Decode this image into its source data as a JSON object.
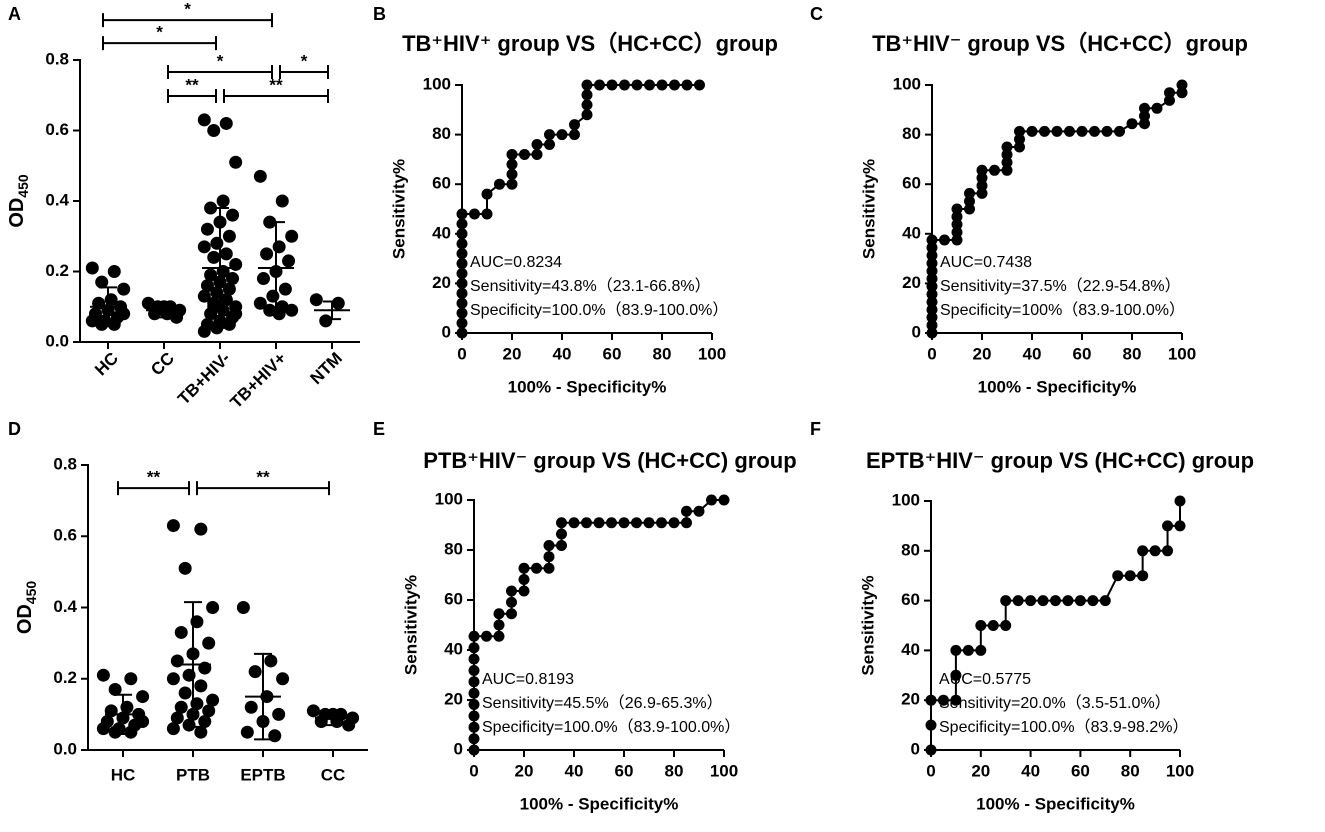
{
  "chart_data": [
    {
      "type": "dotplot",
      "panel": "A",
      "y_label": "OD",
      "y_label_sub": "450",
      "categories": [
        "HC",
        "CC",
        "TB+HIV-",
        "TB+HIV+",
        "NTM"
      ],
      "xtick_rotation": -45,
      "values": [
        [
          0.21,
          0.2,
          0.17,
          0.15,
          0.12,
          0.11,
          0.1,
          0.09,
          0.08,
          0.07,
          0.06,
          0.06,
          0.05,
          0.05,
          0.08
        ],
        [
          0.11,
          0.1,
          0.1,
          0.09,
          0.08,
          0.08,
          0.07,
          0.1
        ],
        [
          0.63,
          0.62,
          0.6,
          0.51,
          0.4,
          0.38,
          0.36,
          0.34,
          0.32,
          0.3,
          0.28,
          0.27,
          0.25,
          0.24,
          0.22,
          0.2,
          0.19,
          0.18,
          0.17,
          0.16,
          0.15,
          0.14,
          0.13,
          0.12,
          0.11,
          0.1,
          0.09,
          0.08,
          0.07,
          0.06,
          0.05,
          0.05,
          0.04,
          0.03,
          0.12,
          0.1,
          0.08
        ],
        [
          0.47,
          0.4,
          0.34,
          0.3,
          0.27,
          0.25,
          0.23,
          0.2,
          0.18,
          0.15,
          0.13,
          0.11,
          0.1,
          0.09,
          0.09,
          0.08
        ],
        [
          0.12,
          0.11,
          0.06
        ]
      ],
      "means": [
        0.1,
        0.09,
        0.21,
        0.21,
        0.09
      ],
      "sds": [
        0.055,
        0.02,
        0.17,
        0.13,
        0.025
      ],
      "ylim": [
        0,
        0.8
      ],
      "yticks": [
        {
          "value": 0,
          "label": "0.0"
        },
        0.2,
        0.4,
        0.6,
        0.8
      ],
      "comparisons": [
        {
          "label": "*",
          "from": 0,
          "to": 3,
          "y": 0.913
        },
        {
          "label": "*",
          "from": 0,
          "to": 2,
          "y": 0.848
        },
        {
          "label": "*",
          "from": 1,
          "to": 3,
          "y": 0.766
        },
        {
          "label": "*",
          "from": 3,
          "to": 4,
          "y": 0.766
        },
        {
          "label": "**",
          "from": 1,
          "to": 2,
          "y": 0.698
        },
        {
          "label": "**",
          "from": 2,
          "to": 4,
          "y": 0.698
        }
      ],
      "color": "#000000"
    },
    {
      "type": "roc",
      "panel": "B",
      "title": "TB⁺HIV⁺ group VS（HC+CC）group",
      "x_label": "100% - Specificity%",
      "y_label": "Sensitivity%",
      "x": [
        0,
        0,
        0,
        0,
        0,
        0,
        0,
        0,
        0,
        0,
        0,
        0,
        0,
        5,
        10,
        10,
        15,
        20,
        20,
        20,
        20,
        25,
        30,
        30,
        35,
        35,
        40,
        45,
        45,
        50,
        50,
        50,
        50,
        55,
        60,
        65,
        70,
        75,
        80,
        85,
        90,
        95
      ],
      "y": [
        0,
        4,
        8,
        12,
        16,
        20,
        24,
        28,
        32,
        36,
        40,
        44,
        48,
        48,
        48,
        56,
        60,
        60,
        64,
        68,
        72,
        72,
        72,
        76,
        76,
        80,
        80,
        80,
        84,
        88,
        92,
        96,
        100,
        100,
        100,
        100,
        100,
        100,
        100,
        100,
        100,
        100
      ],
      "xlim": [
        0,
        100
      ],
      "ylim": [
        0,
        100
      ],
      "xticks": [
        0,
        20,
        40,
        60,
        80,
        100
      ],
      "yticks": [
        0,
        20,
        40,
        60,
        80,
        100
      ],
      "annotations": [
        "AUC=0.8234",
        "Sensitivity=43.8%（23.1-66.8%）",
        "Specificity=100.0%（83.9-100.0%）"
      ],
      "color": "#000000"
    },
    {
      "type": "roc",
      "panel": "C",
      "title": "TB⁺HIV⁻ group VS（HC+CC）group",
      "x_label": "100% - Specificity%",
      "y_label": "Sensitivity%",
      "x": [
        0,
        0,
        0,
        0,
        0,
        0,
        0,
        0,
        0,
        0,
        0,
        0,
        0,
        5,
        10,
        10,
        10,
        10,
        10,
        15,
        15,
        15,
        20,
        20,
        20,
        20,
        25,
        30,
        30,
        30,
        30,
        35,
        35,
        35,
        40,
        45,
        50,
        55,
        60,
        65,
        70,
        75,
        80,
        85,
        85,
        85,
        90,
        95,
        95,
        100,
        100
      ],
      "y": [
        0,
        3.1,
        6.3,
        9.4,
        12.5,
        15.6,
        18.8,
        21.9,
        25,
        28.1,
        31.3,
        34.4,
        37.5,
        37.5,
        37.5,
        40.6,
        43.8,
        46.9,
        50,
        50,
        53.1,
        56.3,
        56.3,
        59.4,
        62.5,
        65.6,
        65.6,
        65.6,
        68.8,
        71.9,
        75,
        75,
        78.1,
        81.3,
        81.3,
        81.3,
        81.3,
        81.3,
        81.3,
        81.3,
        81.3,
        81.3,
        84.4,
        84.4,
        87.5,
        90.6,
        90.6,
        93.8,
        96.9,
        96.9,
        100
      ],
      "xlim": [
        0,
        100
      ],
      "ylim": [
        0,
        100
      ],
      "xticks": [
        0,
        20,
        40,
        60,
        80,
        100
      ],
      "yticks": [
        0,
        20,
        40,
        60,
        80,
        100
      ],
      "annotations": [
        "AUC=0.7438",
        "Sensitivity=37.5%（22.9-54.8%）",
        "Specificity=100%（83.9-100.0%）"
      ],
      "color": "#000000"
    },
    {
      "type": "dotplot",
      "panel": "D",
      "y_label": "OD",
      "y_label_sub": "450",
      "categories": [
        "HC",
        "PTB",
        "EPTB",
        "CC"
      ],
      "xtick_rotation": 0,
      "values": [
        [
          0.21,
          0.2,
          0.17,
          0.15,
          0.12,
          0.11,
          0.1,
          0.09,
          0.08,
          0.07,
          0.06,
          0.06,
          0.05,
          0.05,
          0.08
        ],
        [
          0.63,
          0.62,
          0.51,
          0.4,
          0.36,
          0.33,
          0.3,
          0.27,
          0.25,
          0.23,
          0.21,
          0.2,
          0.18,
          0.16,
          0.14,
          0.13,
          0.12,
          0.11,
          0.1,
          0.09,
          0.08,
          0.07,
          0.06,
          0.05
        ],
        [
          0.4,
          0.25,
          0.22,
          0.2,
          0.15,
          0.12,
          0.1,
          0.08,
          0.05,
          0.04
        ],
        [
          0.11,
          0.1,
          0.1,
          0.09,
          0.08,
          0.08,
          0.07,
          0.1
        ]
      ],
      "means": [
        0.1,
        0.24,
        0.15,
        0.09
      ],
      "sds": [
        0.055,
        0.175,
        0.12,
        0.02
      ],
      "ylim": [
        0,
        0.8
      ],
      "yticks": [
        {
          "value": 0,
          "label": "0.0"
        },
        0.2,
        0.4,
        0.6,
        0.8
      ],
      "comparisons": [
        {
          "label": "**",
          "from": 0,
          "to": 1,
          "y": 0.735
        },
        {
          "label": "**",
          "from": 1,
          "to": 3,
          "y": 0.735
        }
      ],
      "color": "#000000"
    },
    {
      "type": "roc",
      "panel": "E",
      "title": "PTB⁺HIV⁻ group VS (HC+CC) group",
      "x_label": "100% - Specificity%",
      "y_label": "Sensitivity%",
      "x": [
        0,
        0,
        0,
        0,
        0,
        0,
        0,
        0,
        0,
        0,
        0,
        5,
        10,
        10,
        10,
        15,
        15,
        15,
        20,
        20,
        20,
        25,
        30,
        30,
        30,
        35,
        35,
        35,
        40,
        45,
        50,
        55,
        60,
        65,
        70,
        75,
        80,
        85,
        85,
        90,
        95,
        100
      ],
      "y": [
        0,
        4.5,
        9.1,
        13.6,
        18.2,
        22.7,
        27.3,
        31.8,
        36.4,
        40.9,
        45.5,
        45.5,
        45.5,
        50,
        54.5,
        54.5,
        59.1,
        63.6,
        63.6,
        68.2,
        72.7,
        72.7,
        72.7,
        77.3,
        81.8,
        81.8,
        86.4,
        90.9,
        90.9,
        90.9,
        90.9,
        90.9,
        90.9,
        90.9,
        90.9,
        90.9,
        90.9,
        90.9,
        95.5,
        95.5,
        100,
        100
      ],
      "xlim": [
        0,
        100
      ],
      "ylim": [
        0,
        100
      ],
      "xticks": [
        0,
        20,
        40,
        60,
        80,
        100
      ],
      "yticks": [
        0,
        20,
        40,
        60,
        80,
        100
      ],
      "annotations": [
        "AUC=0.8193",
        "Sensitivity=45.5%（26.9-65.3%）",
        "Specificity=100.0%（83.9-100.0%）"
      ],
      "color": "#000000"
    },
    {
      "type": "roc",
      "panel": "F",
      "title": "EPTB⁺HIV⁻ group VS (HC+CC) group",
      "x_label": "100% - Specificity%",
      "y_label": "Sensitivity%",
      "x": [
        0,
        0,
        0,
        5,
        10,
        10,
        10,
        15,
        20,
        20,
        25,
        30,
        30,
        35,
        40,
        45,
        50,
        55,
        60,
        65,
        70,
        75,
        80,
        85,
        85,
        90,
        95,
        95,
        100,
        100
      ],
      "y": [
        0,
        10,
        20,
        20,
        20,
        30,
        40,
        40,
        40,
        50,
        50,
        50,
        60,
        60,
        60,
        60,
        60,
        60,
        60,
        60,
        60,
        70,
        70,
        70,
        80,
        80,
        80,
        90,
        90,
        100
      ],
      "xlim": [
        0,
        100
      ],
      "ylim": [
        0,
        100
      ],
      "xticks": [
        0,
        20,
        40,
        60,
        80,
        100
      ],
      "yticks": [
        0,
        20,
        40,
        60,
        80,
        100
      ],
      "annotations": [
        "AUC=0.5775",
        "Sensitivity=20.0%（3.5-51.0%）",
        "Specificity=100.0%（83.9-98.2%）"
      ],
      "color": "#000000"
    }
  ]
}
